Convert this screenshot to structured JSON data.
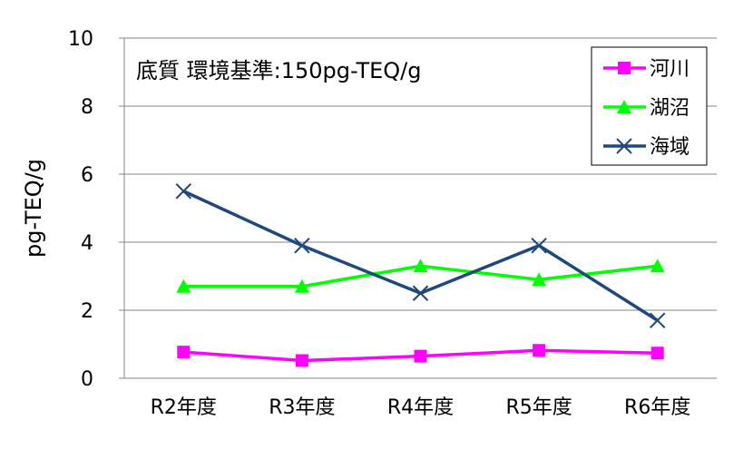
{
  "chart_data": {
    "type": "line",
    "title": "底質  環境基準:150pg-TEQ/g",
    "ylabel": "pg-TEQ/g",
    "xlabel": "",
    "categories": [
      "R2年度",
      "R3年度",
      "R4年度",
      "R5年度",
      "R6年度"
    ],
    "ylim": [
      0,
      10
    ],
    "yticks": [
      0,
      2,
      4,
      6,
      8,
      10
    ],
    "grid": true,
    "legend_position": "top-right",
    "series": [
      {
        "name": "河川",
        "values": [
          0.77,
          0.52,
          0.65,
          0.82,
          0.74
        ],
        "color": "#ff00ff",
        "marker": "square"
      },
      {
        "name": "湖沼",
        "values": [
          2.7,
          2.7,
          3.3,
          2.9,
          3.3
        ],
        "color": "#00ff00",
        "marker": "triangle"
      },
      {
        "name": "海域",
        "values": [
          5.5,
          3.9,
          2.5,
          3.9,
          1.7
        ],
        "color": "#1f497d",
        "marker": "x"
      }
    ]
  }
}
